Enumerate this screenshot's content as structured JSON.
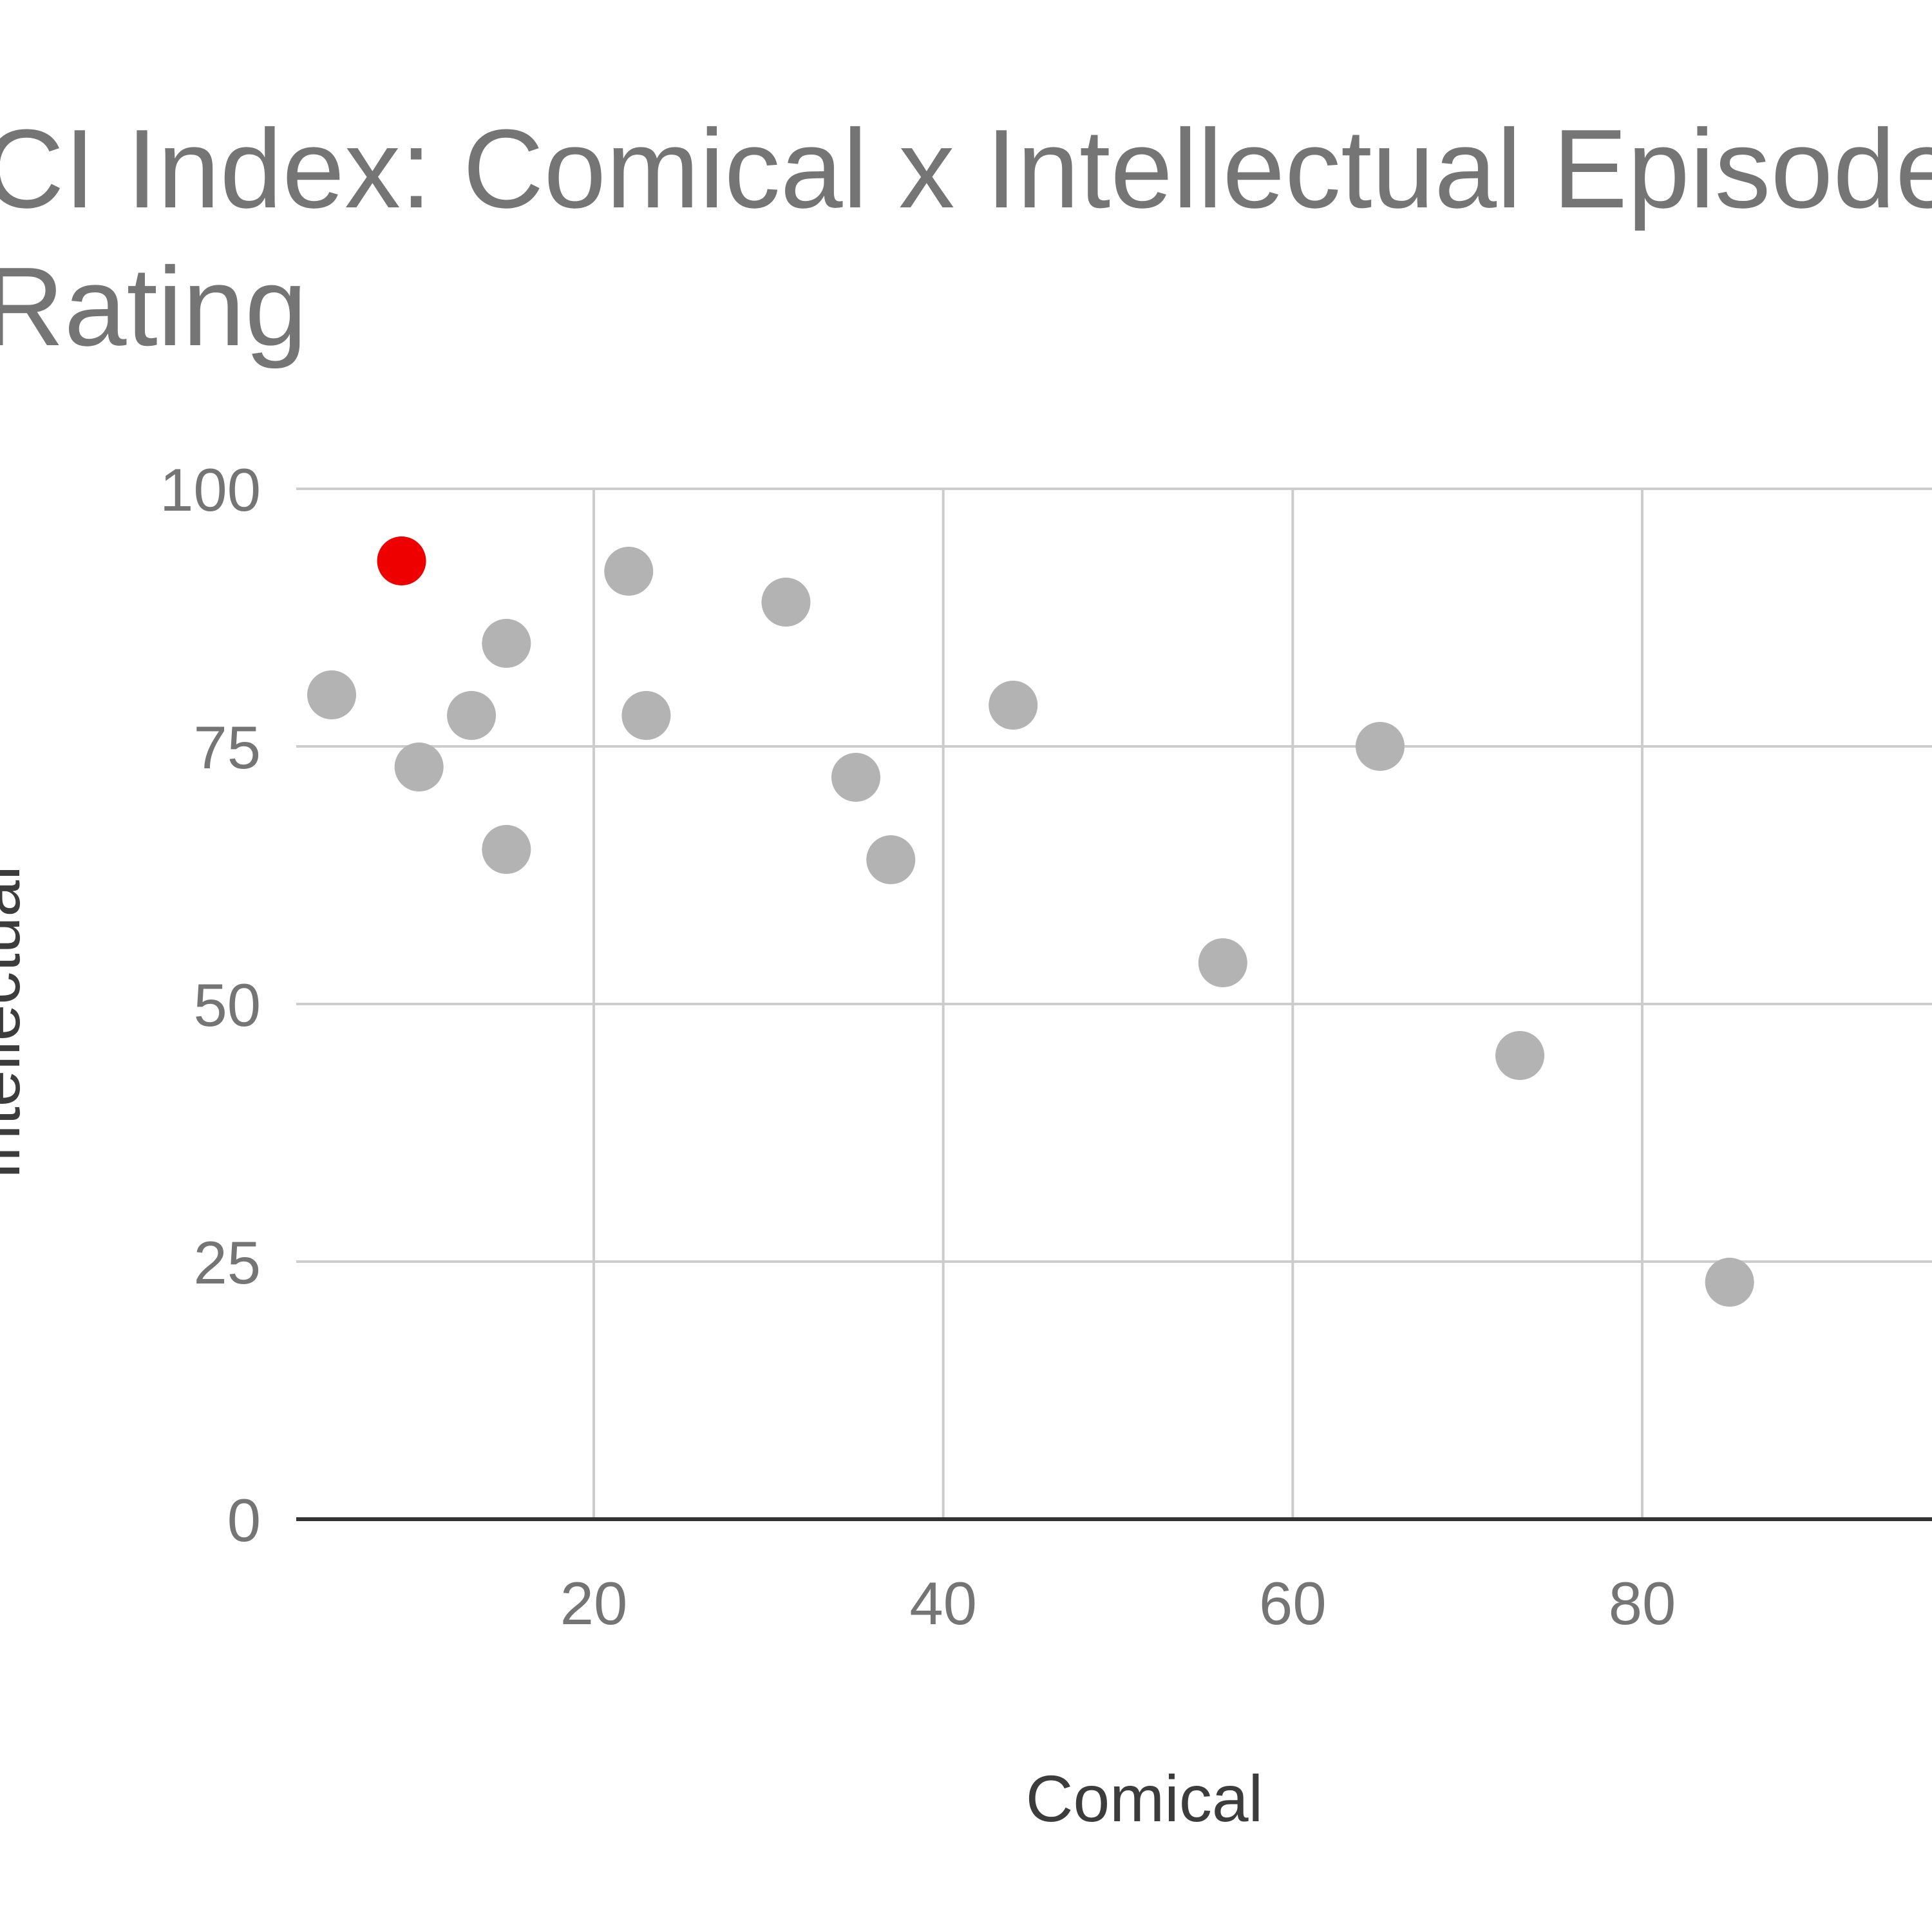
{
  "chart_data": {
    "type": "scatter",
    "title_lines": [
      "CI Index: Comical x Intellectual Episode",
      "Rating"
    ],
    "xlabel": "Comical",
    "ylabel": "Intellectual",
    "xlim": [
      3,
      100
    ],
    "ylim": [
      0,
      100
    ],
    "x_ticks": [
      20,
      40,
      60,
      80
    ],
    "y_ticks": [
      0,
      25,
      50,
      75,
      100
    ],
    "grid": true,
    "legend": "none",
    "series": [
      {
        "color": "#b3b3b3",
        "points": [
          {
            "x": 5,
            "y": 80
          },
          {
            "x": 10,
            "y": 73
          },
          {
            "x": 13,
            "y": 78
          },
          {
            "x": 15,
            "y": 85
          },
          {
            "x": 15,
            "y": 65
          },
          {
            "x": 22,
            "y": 92
          },
          {
            "x": 23,
            "y": 78
          },
          {
            "x": 31,
            "y": 89
          },
          {
            "x": 35,
            "y": 72
          },
          {
            "x": 37,
            "y": 64
          },
          {
            "x": 44,
            "y": 79
          },
          {
            "x": 56,
            "y": 54
          },
          {
            "x": 65,
            "y": 75
          },
          {
            "x": 73,
            "y": 45
          },
          {
            "x": 85,
            "y": 23
          }
        ]
      },
      {
        "color": "#ee0000",
        "points": [
          {
            "x": 9,
            "y": 93
          }
        ]
      }
    ]
  }
}
